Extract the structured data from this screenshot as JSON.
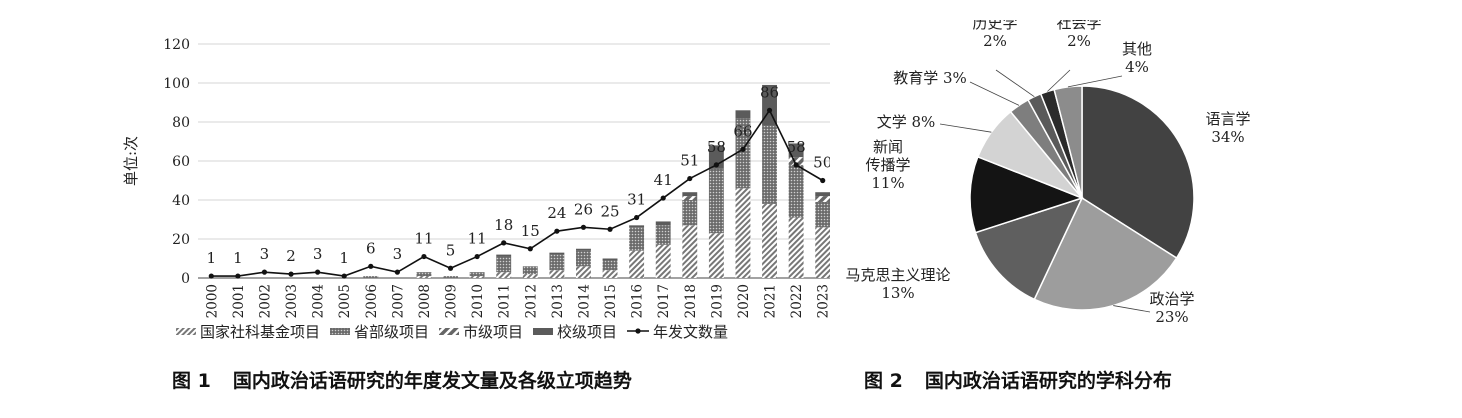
{
  "figure1": {
    "caption_num": "图 1",
    "caption_text": "国内政治话语研究的年度发文量及各级立项趋势"
  },
  "figure2": {
    "caption_num": "图 2",
    "caption_text": "国内政治话语研究的学科分布"
  },
  "chart_data": [
    {
      "type": "bar",
      "stacked": true,
      "title": "",
      "xlabel": "",
      "ylabel": "单位:次",
      "ylim": [
        0,
        120
      ],
      "yticks": [
        0,
        20,
        40,
        60,
        80,
        100,
        120
      ],
      "grid": true,
      "legend_position": "bottom",
      "categories": [
        "2000",
        "2001",
        "2002",
        "2003",
        "2004",
        "2005",
        "2006",
        "2007",
        "2008",
        "2009",
        "2010",
        "2011",
        "2012",
        "2013",
        "2014",
        "2015",
        "2016",
        "2017",
        "2018",
        "2019",
        "2020",
        "2021",
        "2022",
        "2023"
      ],
      "series": [
        {
          "name": "国家社科基金项目",
          "kind": "bar",
          "pattern": "hatch",
          "color": "#8a8a8a",
          "values": [
            0,
            0,
            0,
            0,
            0,
            0,
            0,
            0,
            1,
            0,
            1,
            3,
            2,
            4,
            6,
            4,
            14,
            17,
            27,
            23,
            46,
            38,
            31,
            26
          ]
        },
        {
          "name": "省部级项目",
          "kind": "bar",
          "pattern": "dots",
          "color": "#6f6f6f",
          "values": [
            0,
            0,
            0,
            0,
            0,
            0,
            1,
            0,
            2,
            1,
            2,
            8,
            4,
            8,
            8,
            5,
            12,
            10,
            13,
            33,
            36,
            40,
            27,
            13
          ]
        },
        {
          "name": "市级项目",
          "kind": "bar",
          "pattern": "hatch-bold",
          "color": "#9a9a9a",
          "values": [
            0,
            0,
            0,
            0,
            0,
            0,
            0,
            0,
            0,
            0,
            0,
            0,
            0,
            0,
            0,
            0,
            0,
            0,
            2,
            0,
            0,
            0,
            4,
            3
          ]
        },
        {
          "name": "校级项目",
          "kind": "bar",
          "pattern": "solid",
          "color": "#5b5b5b",
          "values": [
            0,
            0,
            0,
            0,
            0,
            0,
            0,
            0,
            0,
            0,
            0,
            1,
            0,
            1,
            1,
            1,
            1,
            2,
            2,
            12,
            4,
            21,
            7,
            2
          ]
        },
        {
          "name": "年发文数量",
          "kind": "line",
          "color": "#111111",
          "values": [
            1,
            1,
            3,
            2,
            3,
            1,
            6,
            3,
            11,
            5,
            11,
            18,
            15,
            24,
            26,
            25,
            31,
            41,
            51,
            58,
            66,
            86,
            58,
            50
          ],
          "data_labels": [
            "1",
            "1",
            "3",
            "2",
            "3",
            "1",
            "6",
            "3",
            "11",
            "5",
            "11",
            "18",
            "15",
            "24",
            "26",
            "25",
            "31",
            "41",
            "51",
            "58",
            "66",
            "86",
            "58",
            "50"
          ]
        }
      ]
    },
    {
      "type": "pie",
      "title": "",
      "slices": [
        {
          "label": "语言学",
          "value": 34,
          "pct": "34%",
          "color": "#424242"
        },
        {
          "label": "政治学",
          "value": 23,
          "pct": "23%",
          "color": "#9d9d9d"
        },
        {
          "label": "马克思主义理论",
          "value": 13,
          "pct": "13%",
          "color": "#5f5f5f"
        },
        {
          "label": "新闻传播学",
          "label_lines": [
            "新闻",
            "传播学"
          ],
          "value": 11,
          "pct": "11%",
          "color": "#141414"
        },
        {
          "label": "文学",
          "value": 8,
          "pct": "8%",
          "color": "#d3d3d3"
        },
        {
          "label": "教育学",
          "value": 3,
          "pct": "3%",
          "color": "#7e7e7e"
        },
        {
          "label": "历史学",
          "value": 2,
          "pct": "2%",
          "color": "#5a5a5a"
        },
        {
          "label": "社会学",
          "value": 2,
          "pct": "2%",
          "color": "#2b2b2b"
        },
        {
          "label": "其他",
          "value": 4,
          "pct": "4%",
          "color": "#8c8c8c"
        }
      ]
    }
  ]
}
